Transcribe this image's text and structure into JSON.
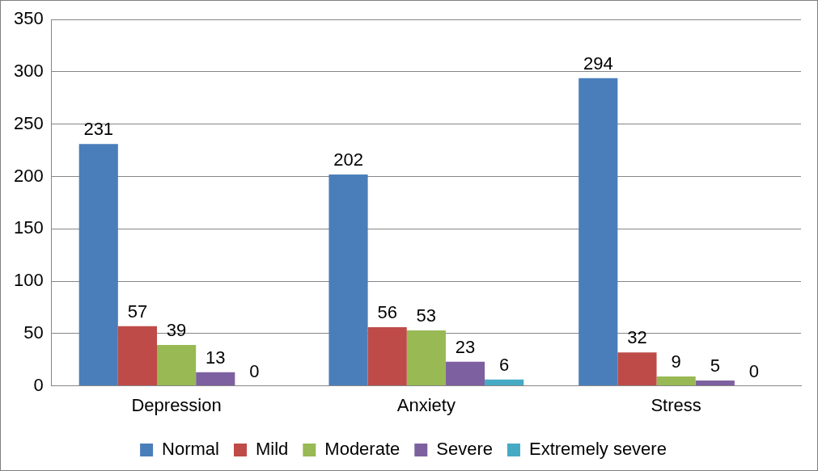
{
  "chart_data": {
    "type": "bar",
    "categories": [
      "Depression",
      "Anxiety",
      "Stress"
    ],
    "series": [
      {
        "name": "Normal",
        "color": "#4a7ebb",
        "values": [
          231,
          202,
          294
        ]
      },
      {
        "name": "Mild",
        "color": "#be4b48",
        "values": [
          57,
          56,
          32
        ]
      },
      {
        "name": "Moderate",
        "color": "#98b954",
        "values": [
          39,
          53,
          9
        ]
      },
      {
        "name": "Severe",
        "color": "#7d60a0",
        "values": [
          13,
          23,
          5
        ]
      },
      {
        "name": "Extremely severe",
        "color": "#46aac5",
        "values": [
          0,
          6,
          0
        ]
      }
    ],
    "ylim": [
      0,
      350
    ],
    "yticks": [
      0,
      50,
      100,
      150,
      200,
      250,
      300,
      350
    ],
    "grid": true,
    "legend": "bottom",
    "data_labels": true
  }
}
